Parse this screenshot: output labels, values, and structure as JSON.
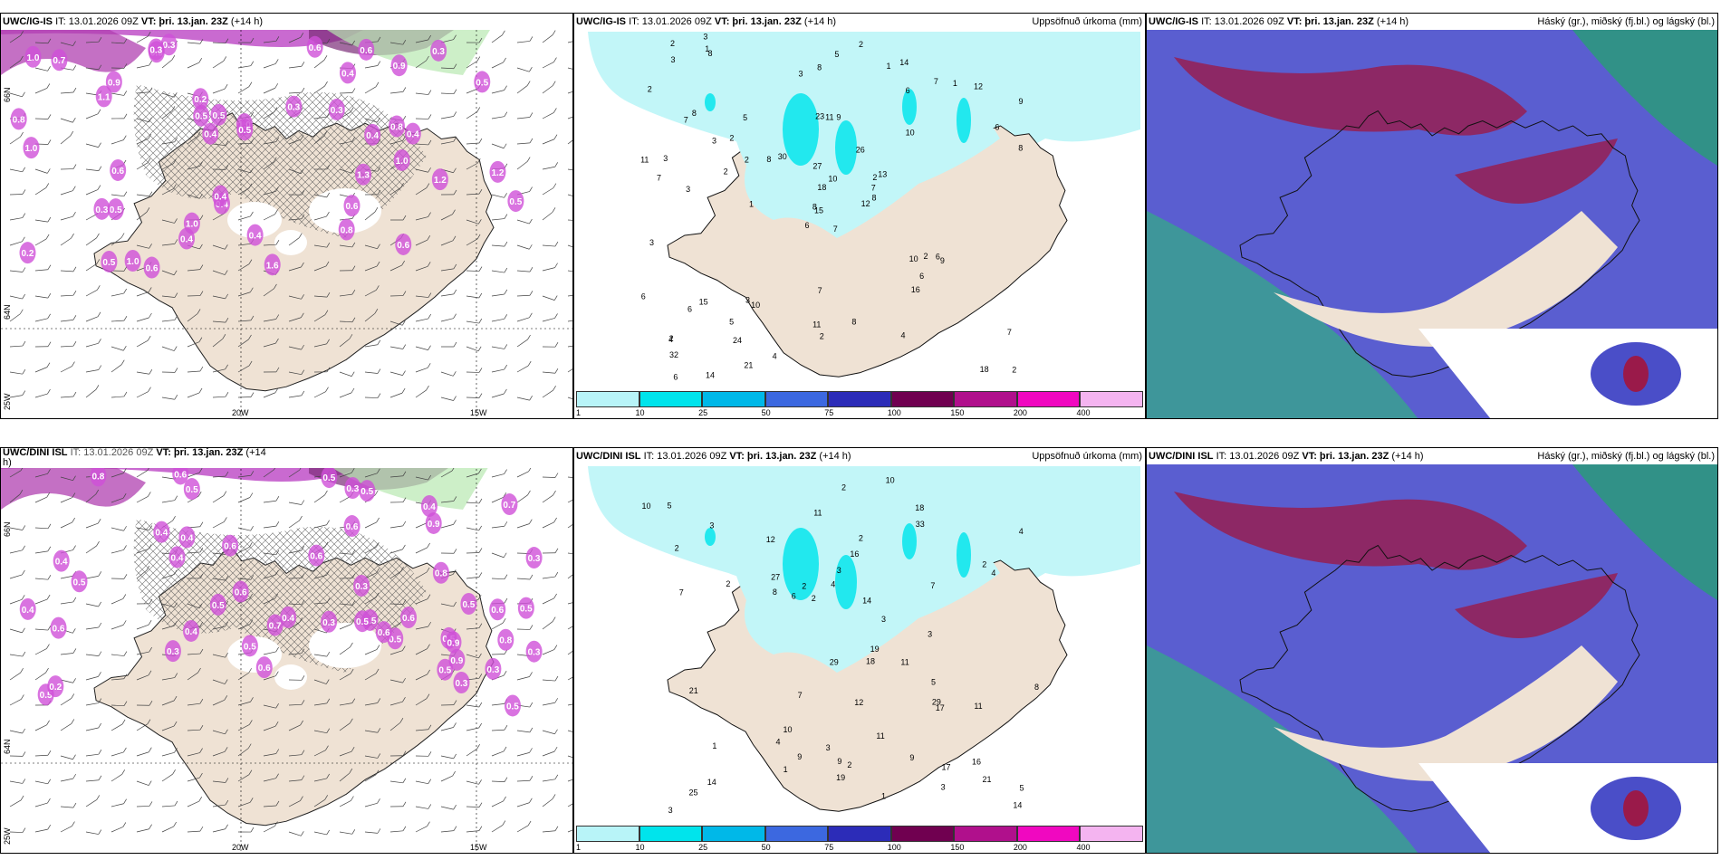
{
  "panels": {
    "p1": {
      "model": "UWC/IG-IS",
      "it": "IT: 13.01.2026 09Z",
      "vt_label": "VT:",
      "vt": "þri. 13.jan. 23Z",
      "lead": "(+14 h)",
      "right": ""
    },
    "p2": {
      "model": "UWC/IG-IS",
      "it": "IT: 13.01.2026 09Z",
      "vt_label": "VT:",
      "vt": "þri. 13.jan. 23Z",
      "lead": "(+14 h)",
      "right": "Uppsöfnuð úrkoma (mm)"
    },
    "p3": {
      "model": "UWC/IG-IS",
      "it": "IT: 13.01.2026 09Z",
      "vt_label": "VT:",
      "vt": "þri. 13.jan. 23Z",
      "lead": "(+14 h)",
      "right": "Háský (gr.), miðský (fj.bl.) og lágský (bl.)"
    },
    "p4": {
      "model": "UWC/DINI ISL",
      "it": "IT: 13.01.2026 09Z",
      "vt_label": "VT:",
      "vt": "þri. 13.jan. 23Z",
      "lead": "(+14",
      "lead2": "h)",
      "right": ""
    },
    "p5": {
      "model": "UWC/DINI ISL",
      "it": "IT: 13.01.2026 09Z",
      "vt_label": "VT:",
      "vt": "þri. 13.jan. 23Z",
      "lead": "(+14 h)",
      "right": "Uppsöfnuð úrkoma (mm)"
    },
    "p6": {
      "model": "UWC/DINI ISL",
      "it": "IT: 13.01.2026 09Z",
      "vt_label": "VT:",
      "vt": "þri. 13.jan. 23Z",
      "lead": "(+14 h)",
      "right": "Háský (gr.), miðský (fj.bl.) og lágský (bl.)"
    }
  },
  "axis_labels": {
    "lon_20w": "20W",
    "lon_15w": "15W",
    "lat_66n": "66N",
    "lat_64n": "64N",
    "lon_25w": "25W"
  },
  "colorbar": {
    "ticks": [
      "1",
      "10",
      "25",
      "50",
      "75",
      "100",
      "150",
      "200",
      "400"
    ],
    "colors": [
      "#b8f4f8",
      "#00e4ec",
      "#00b8e8",
      "#3c68e0",
      "#2c2cb8",
      "#700050",
      "#b0108c",
      "#f008c0",
      "#f4b4f0"
    ]
  },
  "precip_top": [
    "7",
    "7",
    "15",
    "2",
    "2",
    "10",
    "14",
    "9",
    "6",
    "12",
    "8",
    "2",
    "3",
    "9",
    "6",
    "10",
    "14",
    "23",
    "26",
    "15",
    "30",
    "32",
    "24",
    "11",
    "13",
    "9",
    "8",
    "8",
    "7",
    "10",
    "8",
    "8",
    "11",
    "18",
    "5",
    "7",
    "3",
    "18",
    "7",
    "6",
    "2",
    "8",
    "2",
    "16",
    "21",
    "11",
    "7",
    "6",
    "2",
    "8",
    "6",
    "6",
    "2",
    "6",
    "4",
    "5",
    "1",
    "2",
    "8",
    "12",
    "5",
    "1",
    "3",
    "2",
    "1",
    "3",
    "1",
    "3",
    "10",
    "6",
    "7",
    "4",
    "2",
    "2",
    "4",
    "3",
    "3",
    "3",
    "27"
  ],
  "precip_bottom": [
    "25",
    "11",
    "19",
    "12",
    "11",
    "10",
    "16",
    "18",
    "17",
    "4",
    "14",
    "8",
    "9",
    "2",
    "9",
    "27",
    "29",
    "21",
    "29",
    "4",
    "10",
    "14",
    "19",
    "11",
    "17",
    "33",
    "2",
    "16",
    "4",
    "11",
    "21",
    "7",
    "2",
    "3",
    "18",
    "1",
    "9",
    "7",
    "7",
    "3",
    "2",
    "10",
    "12",
    "1",
    "3",
    "6",
    "3",
    "2",
    "8",
    "5",
    "2",
    "4",
    "5",
    "3",
    "1",
    "3",
    "2",
    "2",
    "3",
    "5",
    "14"
  ],
  "wind_top": [
    "0.3",
    "0.7",
    "0.3",
    "0.3",
    "0.2",
    "0.4",
    "0.4",
    "0.3",
    "0.4",
    "0.5",
    "0.6",
    "0.4",
    "0.3",
    "1.0",
    "0.3",
    "0.4",
    "0.6",
    "0.4",
    "0.8",
    "1.0",
    "0.4",
    "0.6",
    "0.5",
    "1.6",
    "0.8",
    "0.6",
    "0.2",
    "0.6",
    "1.1",
    "0.4",
    "0.8",
    "0.5",
    "0.9",
    "1.0",
    "0.3",
    "0.6",
    "0.5",
    "1.0",
    "0.5",
    "1.2",
    "0.9",
    "0.5",
    "1.3",
    "1.0",
    "1.0",
    "0.5",
    "1.2"
  ],
  "wind_bottom": [
    "0.5",
    "0.8",
    "0.3",
    "0.5",
    "0.4",
    "0.3",
    "0.3",
    "0.5",
    "0.4",
    "0.9",
    "0.5",
    "0.9",
    "0.5",
    "0.6",
    "0.3",
    "0.5",
    "0.4",
    "0.5",
    "0.9",
    "0.6",
    "0.6",
    "0.7",
    "0.6",
    "0.8",
    "0.6",
    "0.5",
    "0.6",
    "0.4",
    "0.3",
    "0.6",
    "0.4",
    "0.5",
    "0.7",
    "0.8",
    "0.4",
    "0.2",
    "0.3",
    "0.4",
    "0.6",
    "0.5",
    "0.5",
    "0.3",
    "0.6",
    "0.5",
    "0.6",
    "0.5",
    "0.5",
    "0.5",
    "0.4",
    "0.3"
  ]
}
